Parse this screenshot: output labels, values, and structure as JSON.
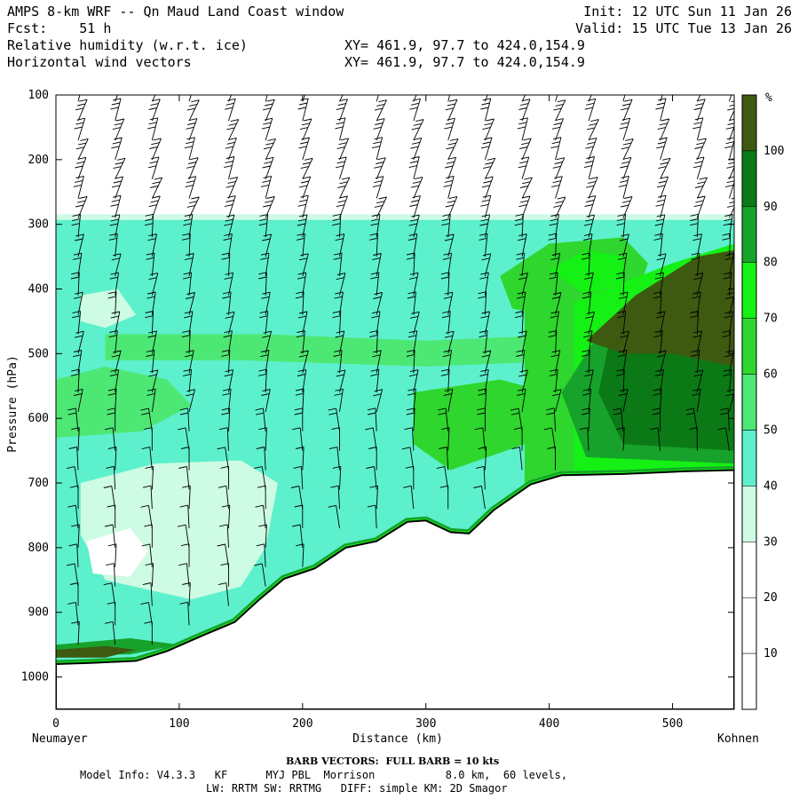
{
  "header": {
    "title": "AMPS 8-km WRF -- Qn Maud Land Coast window",
    "fcst": "Fcst:    51 h",
    "init": "Init: 12 UTC Sun 11 Jan 26",
    "valid": "Valid: 15 UTC Tue 13 Jan 26",
    "field1": "Relative humidity (w.r.t. ice)",
    "field2": "Horizontal wind vectors",
    "xy1": "XY= 461.9, 97.7 to 424.0,154.9",
    "xy2": "XY= 461.9, 97.7 to 424.0,154.9"
  },
  "footer": {
    "barb": "BARB VECTORS:  FULL BARB = 10 kts",
    "line1": "Model Info: V4.3.3   KF      MYJ PBL  Morrison           8.0 km,  60 levels,",
    "line2": "LW: RRTM SW: RRTMG   DIFF: simple KM: 2D Smagor"
  },
  "colors": {
    "rh_30_40": "#cdfbe3",
    "rh_40_50": "#5df0cc",
    "rh_50_60": "#4de874",
    "rh_60_70": "#2ed62e",
    "rh_70_80": "#15f015",
    "rh_80_90": "#17a22b",
    "rh_90_100": "#0b7a16",
    "rh_100": "#3d5a10",
    "terrain": "#ffffff"
  },
  "chart_data": {
    "type": "heatmap",
    "title": "Relative humidity (w.r.t. ice) and horizontal wind vectors",
    "xlabel": "Distance (km)",
    "ylabel": "Pressure (hPa)",
    "x_left_label": "Neumayer",
    "x_right_label": "Kohnen",
    "xlim": [
      0,
      550
    ],
    "ylim": [
      1050,
      100
    ],
    "x_ticks": [
      0,
      100,
      200,
      300,
      400,
      500
    ],
    "y_ticks": [
      100,
      200,
      300,
      400,
      500,
      600,
      700,
      800,
      900,
      1000
    ],
    "colorbar_unit": "%",
    "colorbar_levels": [
      10,
      20,
      30,
      40,
      50,
      60,
      70,
      80,
      90,
      100
    ],
    "colorbar_colors": [
      "#ffffff",
      "#ffffff",
      "#ffffff",
      "#cdfbe3",
      "#5df0cc",
      "#4de874",
      "#2ed62e",
      "#15f015",
      "#17a22b",
      "#0b7a16",
      "#3d5a10"
    ],
    "moist_top_hpa": 285,
    "terrain_surface": [
      {
        "x": 0,
        "p": 980
      },
      {
        "x": 30,
        "p": 978
      },
      {
        "x": 65,
        "p": 975
      },
      {
        "x": 90,
        "p": 960
      },
      {
        "x": 120,
        "p": 935
      },
      {
        "x": 145,
        "p": 915
      },
      {
        "x": 165,
        "p": 880
      },
      {
        "x": 185,
        "p": 848
      },
      {
        "x": 210,
        "p": 832
      },
      {
        "x": 235,
        "p": 800
      },
      {
        "x": 260,
        "p": 790
      },
      {
        "x": 285,
        "p": 760
      },
      {
        "x": 300,
        "p": 758
      },
      {
        "x": 320,
        "p": 776
      },
      {
        "x": 335,
        "p": 778
      },
      {
        "x": 355,
        "p": 742
      },
      {
        "x": 385,
        "p": 702
      },
      {
        "x": 410,
        "p": 688
      },
      {
        "x": 460,
        "p": 686
      },
      {
        "x": 510,
        "p": 682
      },
      {
        "x": 550,
        "p": 680
      }
    ],
    "regions": [
      {
        "rh": 35,
        "desc": "dry core low left",
        "pts": [
          [
            20,
            700
          ],
          [
            80,
            670
          ],
          [
            150,
            665
          ],
          [
            180,
            700
          ],
          [
            170,
            800
          ],
          [
            150,
            860
          ],
          [
            110,
            880
          ],
          [
            40,
            850
          ],
          [
            20,
            780
          ]
        ]
      },
      {
        "rh": 20,
        "desc": "driest pocket",
        "pts": [
          [
            25,
            790
          ],
          [
            60,
            770
          ],
          [
            75,
            805
          ],
          [
            60,
            845
          ],
          [
            30,
            840
          ]
        ]
      },
      {
        "rh": 35,
        "desc": "upper-left dry patch",
        "pts": [
          [
            20,
            410
          ],
          [
            50,
            400
          ],
          [
            65,
            440
          ],
          [
            40,
            460
          ],
          [
            20,
            450
          ]
        ]
      },
      {
        "rh": 55,
        "desc": "left mid moist lobe",
        "pts": [
          [
            0,
            540
          ],
          [
            40,
            520
          ],
          [
            90,
            540
          ],
          [
            110,
            580
          ],
          [
            70,
            620
          ],
          [
            0,
            630
          ]
        ]
      },
      {
        "rh": 55,
        "desc": "band near 480 hPa",
        "pts": [
          [
            40,
            470
          ],
          [
            170,
            470
          ],
          [
            300,
            480
          ],
          [
            420,
            470
          ],
          [
            430,
            510
          ],
          [
            300,
            520
          ],
          [
            150,
            510
          ],
          [
            40,
            510
          ]
        ]
      },
      {
        "rh": 65,
        "desc": "mid center moist",
        "pts": [
          [
            290,
            560
          ],
          [
            360,
            540
          ],
          [
            400,
            560
          ],
          [
            380,
            640
          ],
          [
            320,
            680
          ],
          [
            290,
            640
          ]
        ]
      },
      {
        "rh": 65,
        "desc": "upper center moist",
        "pts": [
          [
            360,
            380
          ],
          [
            400,
            330
          ],
          [
            460,
            320
          ],
          [
            480,
            360
          ],
          [
            470,
            420
          ],
          [
            420,
            450
          ],
          [
            370,
            430
          ]
        ]
      },
      {
        "rh": 75,
        "desc": "upper center core",
        "pts": [
          [
            400,
            370
          ],
          [
            430,
            340
          ],
          [
            460,
            350
          ],
          [
            460,
            390
          ],
          [
            430,
            410
          ]
        ]
      },
      {
        "rh": 65,
        "desc": "right mid moist",
        "pts": [
          [
            380,
            430
          ],
          [
            470,
            390
          ],
          [
            550,
            360
          ],
          [
            550,
            700
          ],
          [
            380,
            700
          ]
        ]
      },
      {
        "rh": 75,
        "desc": "right moist",
        "pts": [
          [
            420,
            420
          ],
          [
            500,
            360
          ],
          [
            550,
            330
          ],
          [
            550,
            690
          ],
          [
            420,
            690
          ]
        ]
      },
      {
        "rh": 85,
        "desc": "right very moist",
        "pts": [
          [
            440,
            470
          ],
          [
            500,
            400
          ],
          [
            550,
            380
          ],
          [
            550,
            670
          ],
          [
            430,
            660
          ],
          [
            410,
            560
          ]
        ]
      },
      {
        "rh": 95,
        "desc": "right saturated",
        "pts": [
          [
            450,
            470
          ],
          [
            500,
            420
          ],
          [
            550,
            400
          ],
          [
            550,
            650
          ],
          [
            460,
            640
          ],
          [
            440,
            560
          ]
        ]
      },
      {
        "rh": 105,
        "desc": "right supersaturated core",
        "pts": [
          [
            430,
            480
          ],
          [
            470,
            410
          ],
          [
            520,
            350
          ],
          [
            550,
            340
          ],
          [
            550,
            520
          ],
          [
            500,
            500
          ],
          [
            460,
            500
          ]
        ]
      },
      {
        "rh": 85,
        "desc": "near-surface moist left",
        "pts": [
          [
            0,
            950
          ],
          [
            60,
            940
          ],
          [
            100,
            950
          ],
          [
            60,
            965
          ],
          [
            0,
            965
          ]
        ]
      },
      {
        "rh": 105,
        "desc": "surface layer left",
        "pts": [
          [
            0,
            958
          ],
          [
            40,
            952
          ],
          [
            65,
            958
          ],
          [
            40,
            970
          ],
          [
            0,
            970
          ]
        ]
      }
    ],
    "wind_barb_columns_km": [
      18,
      48,
      78,
      108,
      140,
      170,
      200,
      230,
      260,
      290,
      318,
      348,
      378,
      405,
      432,
      460,
      490,
      520,
      546
    ],
    "wind_barb_levels_hpa": [
      110,
      140,
      170,
      200,
      230,
      260,
      290,
      320,
      350,
      380,
      410,
      440,
      470,
      500,
      530,
      560,
      590,
      620,
      650,
      680,
      710,
      740,
      770,
      800,
      830,
      860,
      890,
      920,
      950
    ]
  }
}
